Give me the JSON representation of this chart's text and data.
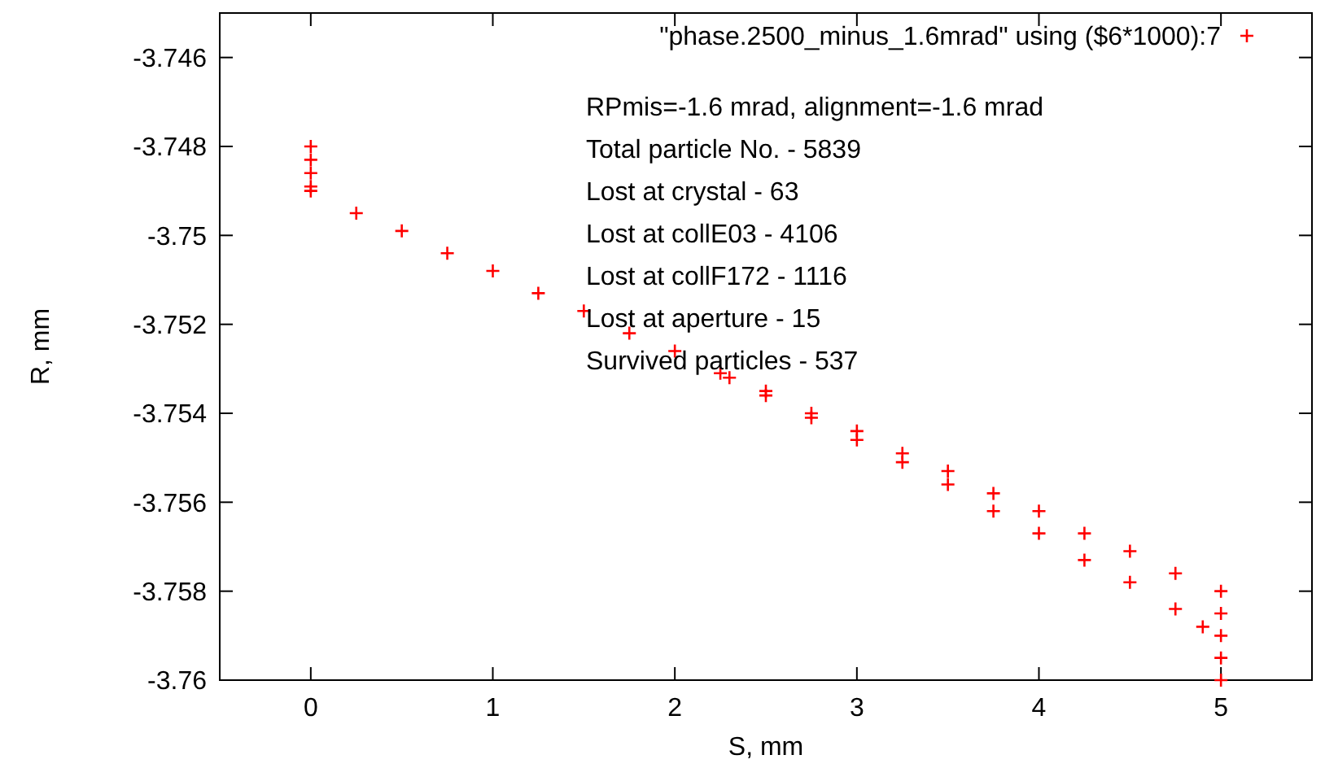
{
  "chart_data": {
    "type": "scatter",
    "xlabel": "S, mm",
    "ylabel": "R, mm",
    "xlim": [
      -0.5,
      5.5
    ],
    "ylim": [
      -3.76,
      -3.745
    ],
    "xticks": [
      0,
      1,
      2,
      3,
      4,
      5
    ],
    "yticks": [
      -3.746,
      -3.748,
      -3.75,
      -3.752,
      -3.754,
      -3.756,
      -3.758,
      -3.76
    ],
    "grid": false,
    "legend": "top right",
    "marker": "cross",
    "annotations": [
      "RPmis=-1.6 mrad, alignment=-1.6 mrad",
      "Total particle No. - 5839",
      "Lost at crystal - 63",
      "Lost at collE03 - 4106",
      "Lost at collF172 - 1116",
      "Lost at aperture - 15",
      "Survived particles - 537"
    ],
    "series": [
      {
        "name": "\"phase.2500_minus_1.6mrad\" using ($6*1000):7",
        "color": "#ff0000",
        "x": [
          0,
          0,
          0,
          0,
          0,
          0.25,
          0.5,
          0.75,
          1,
          1.25,
          1.5,
          1.75,
          2,
          2.25,
          2.5,
          2.75,
          3,
          3.25,
          3.5,
          3.75,
          4,
          4.25,
          4.5,
          4.75,
          5,
          2.3,
          2.5,
          2.75,
          3,
          3.25,
          3.5,
          3.75,
          4,
          4.25,
          4.5,
          4.75,
          4.9,
          5,
          5,
          5,
          5
        ],
        "values": [
          -3.748,
          -3.7483,
          -3.7486,
          -3.7489,
          -3.749,
          -3.7495,
          -3.7499,
          -3.7504,
          -3.7508,
          -3.7513,
          -3.7517,
          -3.7522,
          -3.7526,
          -3.7531,
          -3.7535,
          -3.754,
          -3.7544,
          -3.7549,
          -3.7553,
          -3.7558,
          -3.7562,
          -3.7567,
          -3.7571,
          -3.7576,
          -3.758,
          -3.7532,
          -3.7536,
          -3.7541,
          -3.7546,
          -3.7551,
          -3.7556,
          -3.7562,
          -3.7567,
          -3.7573,
          -3.7578,
          -3.7584,
          -3.7588,
          -3.7585,
          -3.759,
          -3.7595,
          -3.76
        ]
      }
    ]
  }
}
